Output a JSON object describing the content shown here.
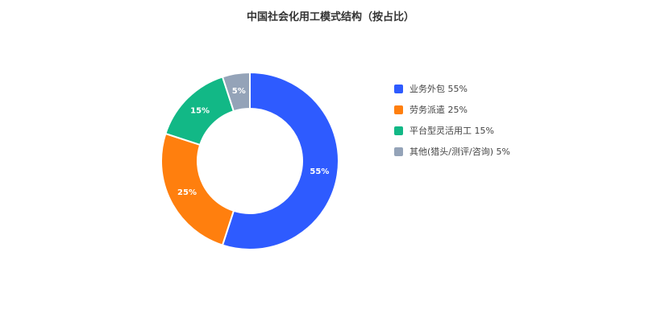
{
  "chart_data": {
    "type": "pie",
    "title": "中国社会化用工模式结构（按占比）",
    "categories": [
      "业务外包",
      "劳务派遣",
      "平台型灵活用工",
      "其他(猎头/测评/咨询)"
    ],
    "values": [
      55,
      25,
      15,
      5
    ],
    "unit": "%",
    "data_labels": [
      "55%",
      "25%",
      "15%",
      "5%"
    ],
    "legend_labels": [
      "业务外包 55%",
      "劳务派遣 25%",
      "平台型灵活用工 15%",
      "其他(猎头/测评/咨询) 5%"
    ],
    "colors": [
      "#2e5bff",
      "#ff7f0e",
      "#12b886",
      "#94a3b8"
    ],
    "donut": true,
    "start_angle_deg": 0,
    "direction": "clockwise",
    "legend_position": "right",
    "grid": false
  }
}
